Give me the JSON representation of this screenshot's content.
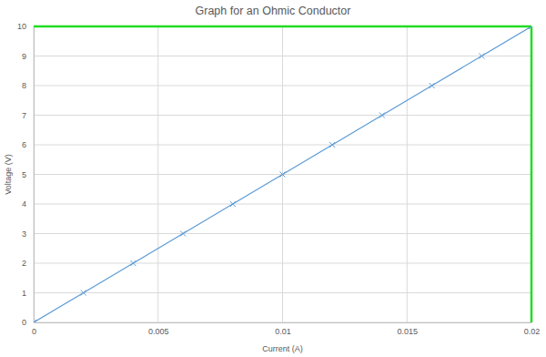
{
  "chart_data": {
    "type": "line",
    "title": "Graph for an Ohmic Conductor",
    "x_label": "Current (A)",
    "y_label": "Voltage (V)",
    "x": [
      0,
      0.002,
      0.004,
      0.006,
      0.008,
      0.01,
      0.012,
      0.014,
      0.016,
      0.018,
      0.02
    ],
    "values": [
      0,
      1,
      2,
      3,
      4,
      5,
      6,
      7,
      8,
      9,
      10
    ],
    "color": "#5b9bd5",
    "marker": "x",
    "xlim": [
      0,
      0.02
    ],
    "ylim": [
      0,
      10
    ],
    "xticks": [
      0,
      0.005,
      0.01,
      0.015,
      0.02
    ],
    "yticks": [
      0,
      1,
      2,
      3,
      4,
      5,
      6,
      7,
      8,
      9,
      10
    ],
    "grid": true
  }
}
